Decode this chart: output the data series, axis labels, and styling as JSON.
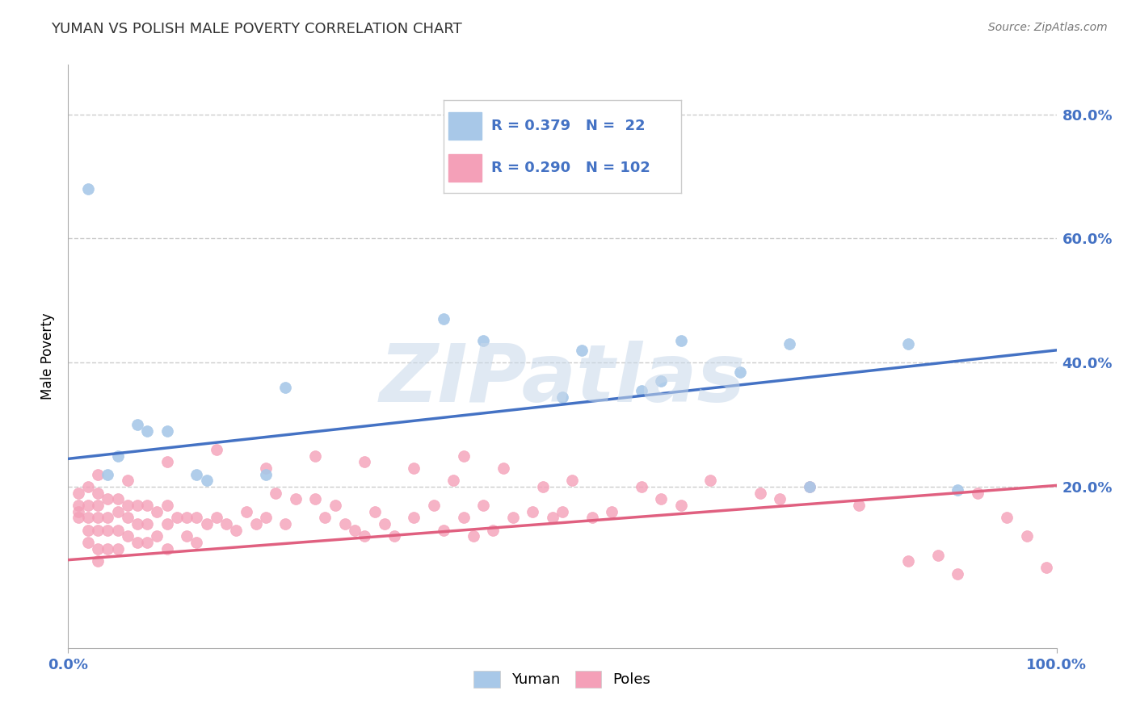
{
  "title": "YUMAN VS POLISH MALE POVERTY CORRELATION CHART",
  "source_text": "Source: ZipAtlas.com",
  "ylabel": "Male Poverty",
  "y_ticks": [
    0.2,
    0.4,
    0.6,
    0.8
  ],
  "y_tick_labels": [
    "20.0%",
    "40.0%",
    "60.0%",
    "80.0%"
  ],
  "xlim": [
    0.0,
    1.0
  ],
  "ylim": [
    -0.06,
    0.88
  ],
  "background_color": "#ffffff",
  "watermark": "ZIPatlas",
  "watermark_color": "#c8d8ea",
  "legend_r1": "R = 0.379",
  "legend_n1": "N =  22",
  "legend_r2": "R = 0.290",
  "legend_n2": "N = 102",
  "yuman_color": "#a8c8e8",
  "poles_color": "#f4a0b8",
  "line_yuman_color": "#4472c4",
  "line_poles_color": "#e06080",
  "yuman_scatter_x": [
    0.02,
    0.05,
    0.07,
    0.08,
    0.1,
    0.13,
    0.2,
    0.22,
    0.38,
    0.42,
    0.52,
    0.58,
    0.62,
    0.68,
    0.73,
    0.85,
    0.04,
    0.14,
    0.5,
    0.6,
    0.75,
    0.9
  ],
  "yuman_scatter_y": [
    0.68,
    0.25,
    0.3,
    0.29,
    0.29,
    0.22,
    0.22,
    0.36,
    0.47,
    0.435,
    0.42,
    0.355,
    0.435,
    0.385,
    0.43,
    0.43,
    0.22,
    0.21,
    0.345,
    0.37,
    0.2,
    0.195
  ],
  "poles_scatter_x": [
    0.01,
    0.01,
    0.01,
    0.01,
    0.02,
    0.02,
    0.02,
    0.02,
    0.02,
    0.03,
    0.03,
    0.03,
    0.03,
    0.03,
    0.03,
    0.04,
    0.04,
    0.04,
    0.04,
    0.05,
    0.05,
    0.05,
    0.05,
    0.06,
    0.06,
    0.06,
    0.07,
    0.07,
    0.07,
    0.08,
    0.08,
    0.08,
    0.09,
    0.09,
    0.1,
    0.1,
    0.1,
    0.11,
    0.12,
    0.12,
    0.13,
    0.13,
    0.14,
    0.15,
    0.16,
    0.17,
    0.18,
    0.19,
    0.2,
    0.21,
    0.22,
    0.23,
    0.25,
    0.26,
    0.27,
    0.28,
    0.29,
    0.3,
    0.31,
    0.32,
    0.33,
    0.35,
    0.37,
    0.38,
    0.39,
    0.4,
    0.41,
    0.42,
    0.43,
    0.44,
    0.45,
    0.47,
    0.49,
    0.5,
    0.51,
    0.53,
    0.55,
    0.58,
    0.6,
    0.62,
    0.65,
    0.7,
    0.72,
    0.75,
    0.8,
    0.85,
    0.88,
    0.9,
    0.92,
    0.95,
    0.97,
    0.99,
    0.03,
    0.06,
    0.1,
    0.15,
    0.2,
    0.25,
    0.3,
    0.35,
    0.4,
    0.48
  ],
  "poles_scatter_y": [
    0.19,
    0.17,
    0.16,
    0.15,
    0.2,
    0.17,
    0.15,
    0.13,
    0.11,
    0.19,
    0.17,
    0.15,
    0.13,
    0.1,
    0.08,
    0.18,
    0.15,
    0.13,
    0.1,
    0.18,
    0.16,
    0.13,
    0.1,
    0.17,
    0.15,
    0.12,
    0.17,
    0.14,
    0.11,
    0.17,
    0.14,
    0.11,
    0.16,
    0.12,
    0.17,
    0.14,
    0.1,
    0.15,
    0.15,
    0.12,
    0.15,
    0.11,
    0.14,
    0.15,
    0.14,
    0.13,
    0.16,
    0.14,
    0.15,
    0.19,
    0.14,
    0.18,
    0.18,
    0.15,
    0.17,
    0.14,
    0.13,
    0.12,
    0.16,
    0.14,
    0.12,
    0.15,
    0.17,
    0.13,
    0.21,
    0.15,
    0.12,
    0.17,
    0.13,
    0.23,
    0.15,
    0.16,
    0.15,
    0.16,
    0.21,
    0.15,
    0.16,
    0.2,
    0.18,
    0.17,
    0.21,
    0.19,
    0.18,
    0.2,
    0.17,
    0.08,
    0.09,
    0.06,
    0.19,
    0.15,
    0.12,
    0.07,
    0.22,
    0.21,
    0.24,
    0.26,
    0.23,
    0.25,
    0.24,
    0.23,
    0.25,
    0.2
  ],
  "yuman_line": {
    "x0": 0.0,
    "y0": 0.245,
    "x1": 1.0,
    "y1": 0.42
  },
  "poles_line": {
    "x0": 0.0,
    "y0": 0.082,
    "x1": 1.0,
    "y1": 0.202
  },
  "title_fontsize": 13,
  "title_color": "#333333",
  "axis_label_color": "#4472c4",
  "tick_color": "#4472c4",
  "grid_color": "#cccccc",
  "grid_style": "--",
  "marker_size": 100
}
